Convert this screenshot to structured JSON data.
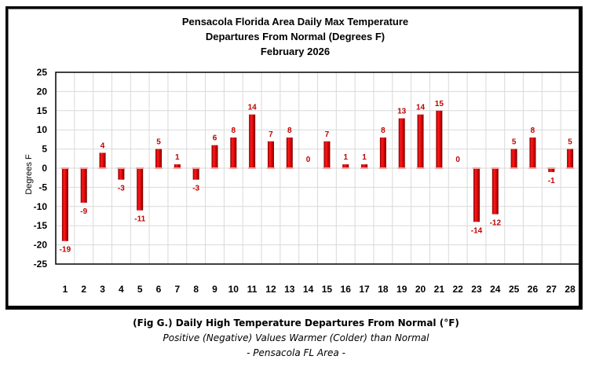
{
  "chart_data": {
    "type": "bar",
    "title": [
      "Pensacola Florida Area Daily Max Temperature",
      "Departures From Normal (Degrees F)",
      "February 2026"
    ],
    "xlabel": "",
    "ylabel": "Degrees F",
    "ylim": [
      -25,
      25
    ],
    "yticks": [
      25,
      20,
      15,
      10,
      5,
      0,
      -5,
      -10,
      -15,
      -20,
      -25
    ],
    "grid": true,
    "legend": "none",
    "categories": [
      "1",
      "2",
      "3",
      "4",
      "5",
      "6",
      "7",
      "8",
      "9",
      "10",
      "11",
      "12",
      "13",
      "14",
      "15",
      "16",
      "17",
      "18",
      "19",
      "20",
      "21",
      "22",
      "23",
      "24",
      "25",
      "26",
      "27",
      "28"
    ],
    "values": [
      -19,
      -9,
      4,
      -3,
      -11,
      5,
      1,
      -3,
      6,
      8,
      14,
      7,
      8,
      0,
      7,
      1,
      1,
      8,
      13,
      14,
      15,
      0,
      -14,
      -12,
      5,
      8,
      -1,
      5
    ],
    "bar_color": "#e00000",
    "label_color": "#c00000"
  },
  "caption": {
    "line1": "(Fig G.) Daily High Temperature Departures From Normal (°F)",
    "line2": "Positive (Negative) Values Warmer (Colder) than Normal",
    "line3": "- Pensacola FL Area -"
  }
}
